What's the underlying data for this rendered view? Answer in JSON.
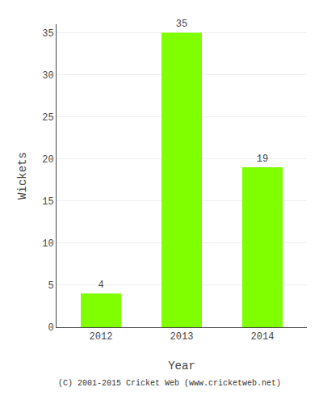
{
  "chart_data": {
    "type": "bar",
    "categories": [
      "2012",
      "2013",
      "2014"
    ],
    "values": [
      4,
      35,
      19
    ],
    "color": "#7FFF00",
    "data_labels": true,
    "xlabel": "Year",
    "ylabel": "Wickets",
    "ylim": [
      0,
      36
    ],
    "yticks": [
      0,
      5,
      10,
      15,
      20,
      25,
      30,
      35
    ],
    "grid": true,
    "annotations": [
      "(C) 2001-2015 Cricket Web (www.cricketweb.net)"
    ]
  }
}
